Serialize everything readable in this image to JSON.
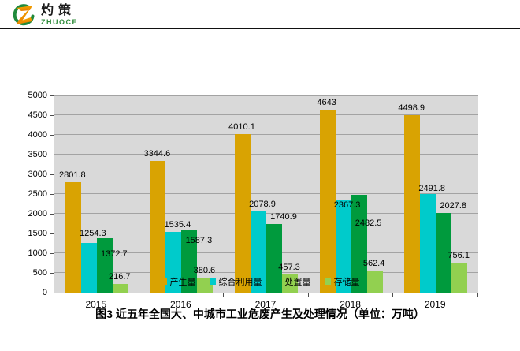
{
  "logo": {
    "cn": "灼策",
    "en": "ZHUOCE",
    "icon": "zhuoce-z-logo",
    "ring_color": "#1f8a3c",
    "z_color_top": "#f7b500",
    "z_color_bottom": "#e97d00"
  },
  "chart_data": {
    "type": "bar",
    "categories": [
      "2015",
      "2016",
      "2017",
      "2018",
      "2019"
    ],
    "series": [
      {
        "name": "产生量",
        "color": "#D9A302",
        "values": [
          2801.8,
          3344.6,
          4010.1,
          4643,
          4498.9
        ]
      },
      {
        "name": "综合利用量",
        "color": "#00CBCB",
        "values": [
          1254.3,
          1535.4,
          2078.9,
          2367.3,
          2491.8
        ]
      },
      {
        "name": "处置量",
        "color": "#009A3D",
        "values": [
          1372.7,
          1587.3,
          1740.9,
          2482.5,
          2027.8
        ]
      },
      {
        "name": "存储量",
        "color": "#92D050",
        "values": [
          216.7,
          380.6,
          457.3,
          562.4,
          756.1
        ]
      }
    ],
    "title": "",
    "xlabel": "",
    "ylabel": "",
    "ylim": [
      0,
      5000
    ],
    "ytick_step": 500,
    "grid": true,
    "legend_position": "bottom",
    "plot_bg": "#D9D9D9",
    "gridline_color": "#A3A3A3"
  },
  "caption": "图3  近五年全国大、中城市工业危废产生及处理情况（单位：万吨）"
}
